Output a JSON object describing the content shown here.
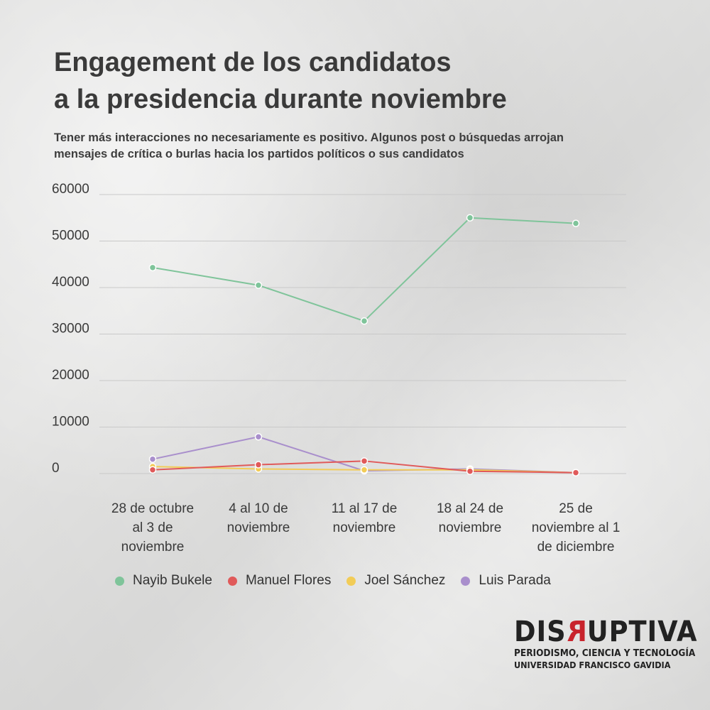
{
  "header": {
    "title_lines": [
      "Engagement de los candidatos",
      "a la presidencia durante noviembre"
    ],
    "subtitle_lines": [
      "Tener más interacciones no necesariamente es positivo. Algunos post o búsquedas arrojan",
      "mensajes de crítica o burlas hacia los partidos políticos o sus candidatos"
    ]
  },
  "chart_data": {
    "type": "line",
    "title": "Engagement de los candidatos a la presidencia durante noviembre",
    "categories": [
      [
        "28 de octubre",
        "al 3 de",
        "noviembre"
      ],
      [
        "4 al 10 de",
        "noviembre"
      ],
      [
        "11 al 17 de",
        "noviembre"
      ],
      [
        "18 al 24 de",
        "noviembre"
      ],
      [
        "25 de",
        "noviembre al 1",
        "de diciembre"
      ]
    ],
    "yticks": [
      "60000",
      "50000",
      "40000",
      "30000",
      "20000",
      "10000",
      "0"
    ],
    "ylim": [
      0,
      60000
    ],
    "grid": true,
    "legend_position": "bottom",
    "series": [
      {
        "name": "Nayib Bukele",
        "color": "#7fc49a",
        "values": [
          44300,
          40500,
          32800,
          55000,
          53800
        ]
      },
      {
        "name": "Manuel Flores",
        "color": "#e05a5a",
        "values": [
          800,
          1900,
          2700,
          500,
          200
        ]
      },
      {
        "name": "Joel Sánchez",
        "color": "#f2cc57",
        "values": [
          1500,
          1000,
          800,
          800,
          200
        ]
      },
      {
        "name": "Luis Parada",
        "color": "#a98fcc",
        "values": [
          3100,
          7900,
          600,
          1000,
          200
        ]
      }
    ]
  },
  "logo": {
    "word_start": "DIS",
    "word_red": "R",
    "word_end": "UPTIVA",
    "line1": "PERIODISMO, CIENCIA Y TECNOLOGÍA",
    "line2": "UNIVERSIDAD FRANCISCO GAVIDIA"
  }
}
